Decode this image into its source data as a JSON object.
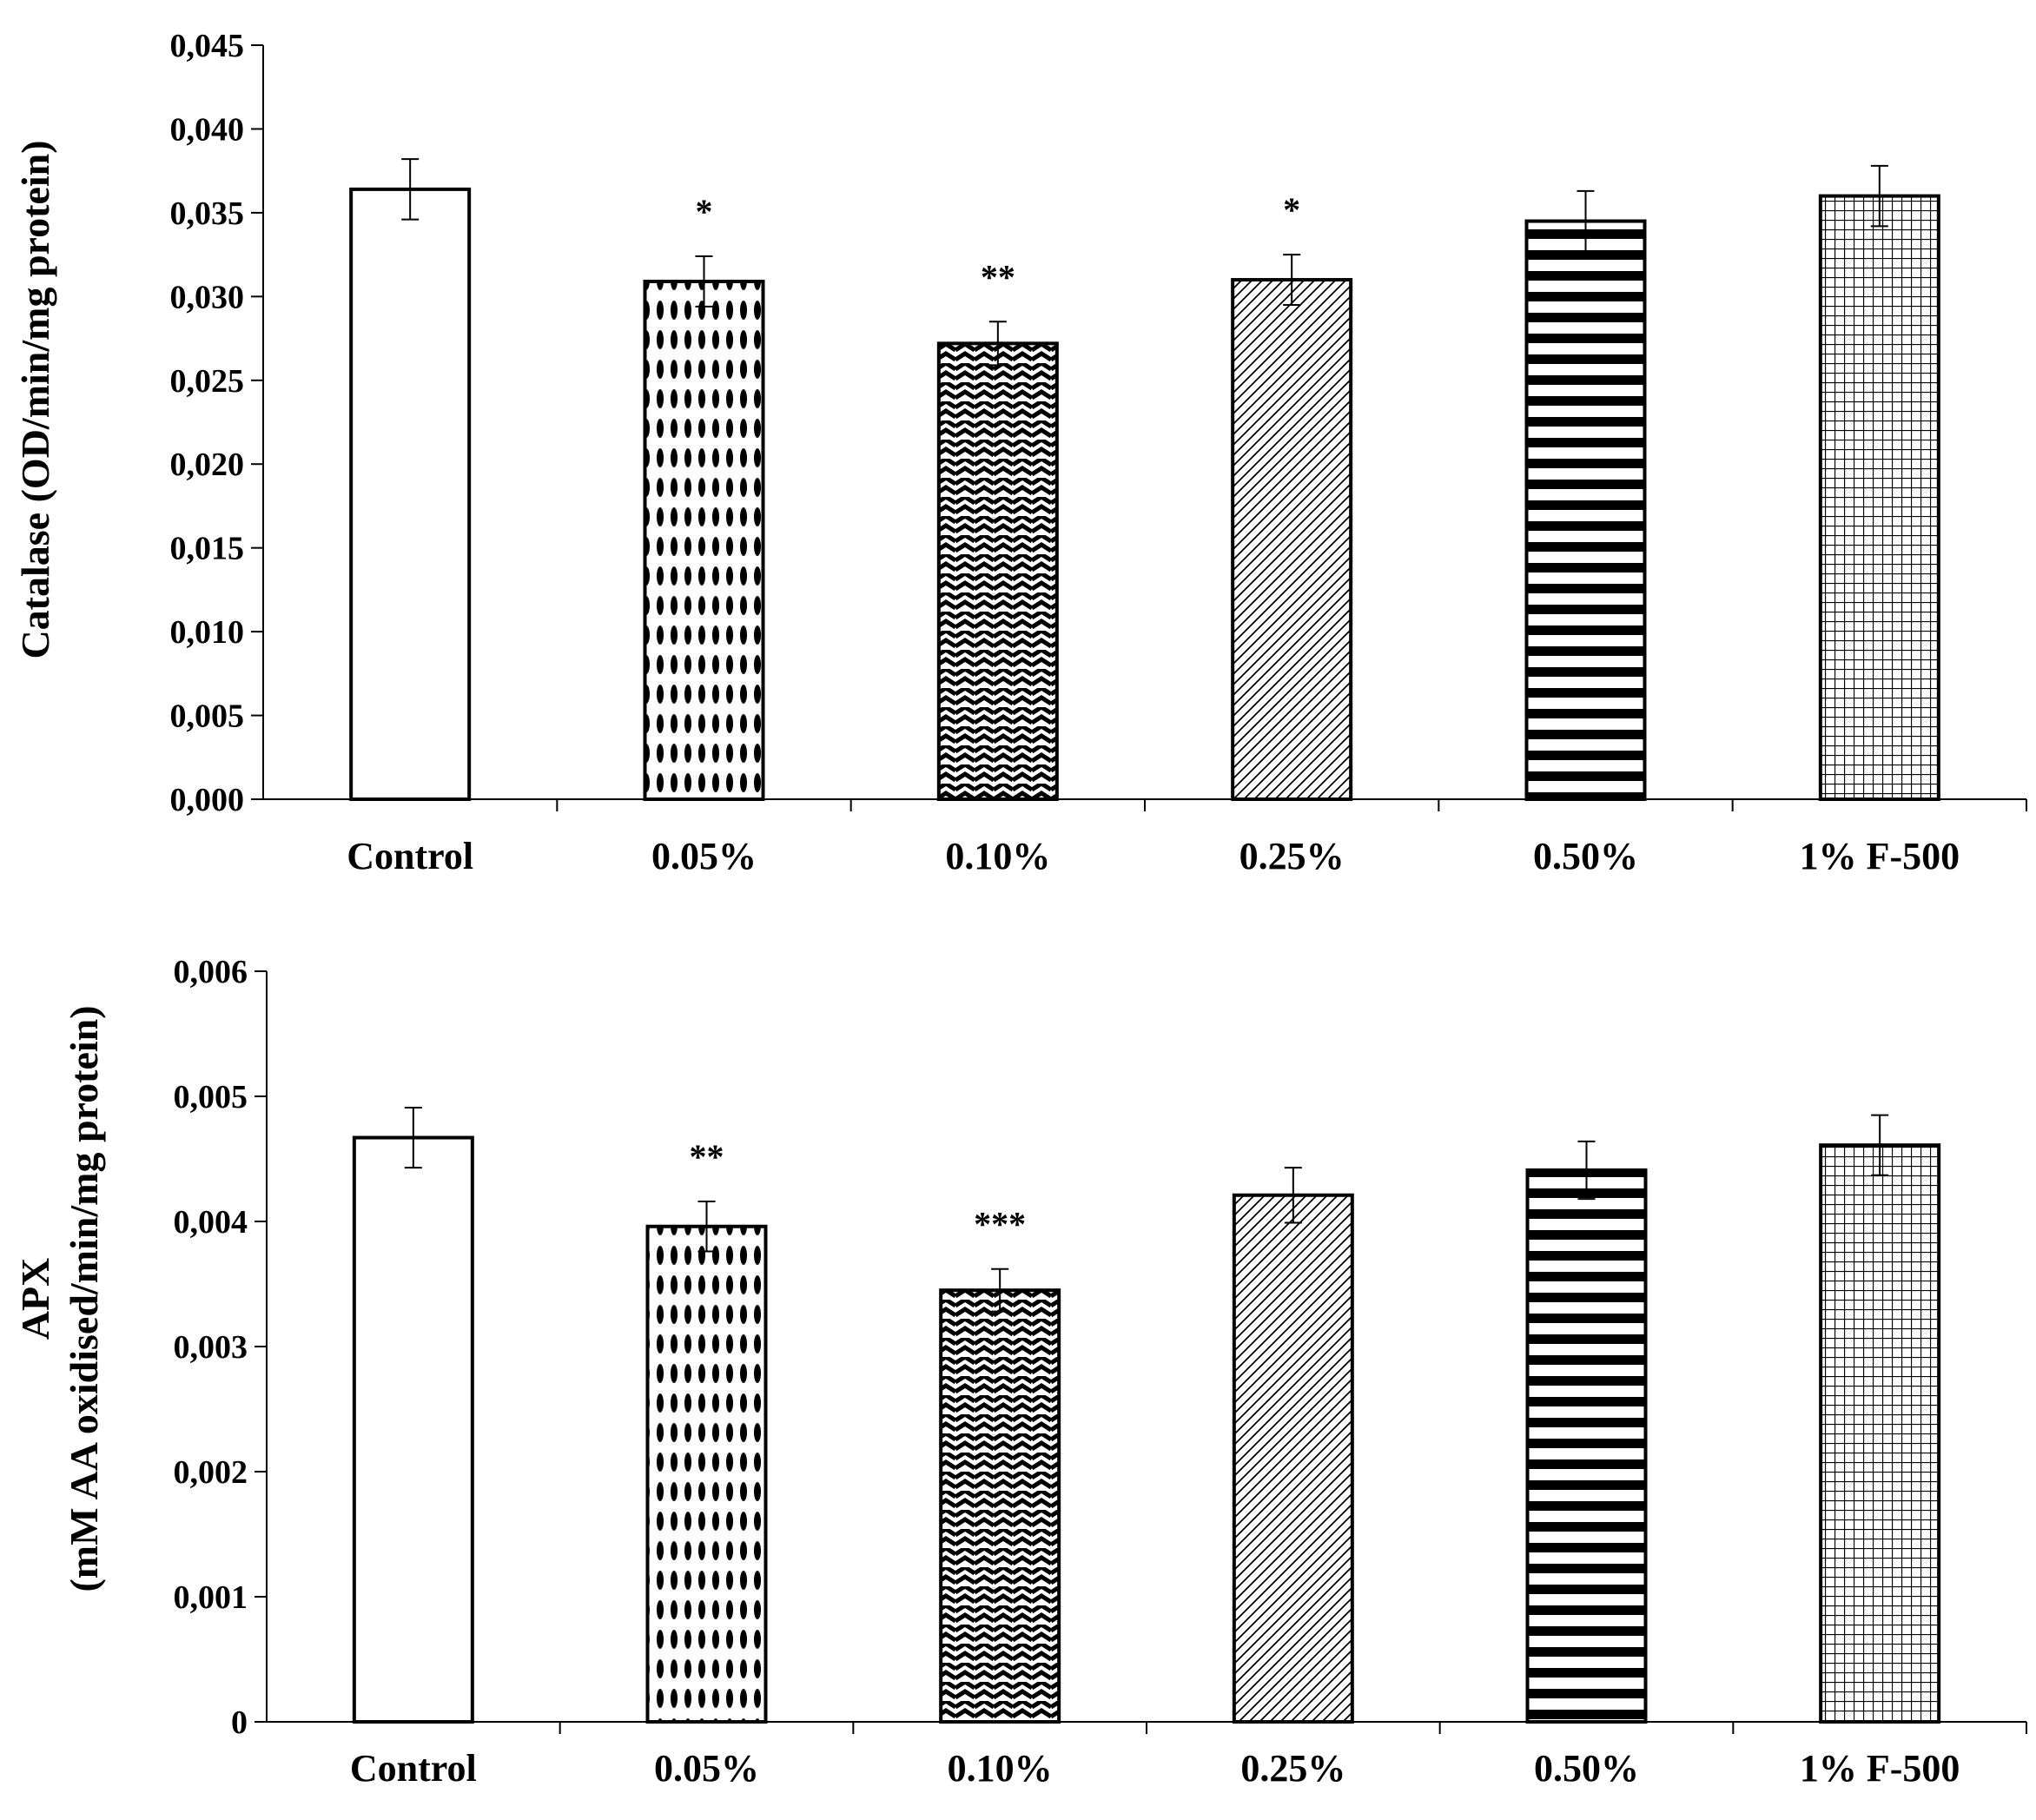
{
  "chart_data": [
    {
      "type": "bar",
      "categories": [
        "Control",
        "0.05%",
        "0.10%",
        "0.25%",
        "0.50%",
        "1% F-500"
      ],
      "values": [
        0.0364,
        0.0309,
        0.0272,
        0.031,
        0.0345,
        0.036
      ],
      "errors": [
        0.0018,
        0.0015,
        0.0013,
        0.0015,
        0.0018,
        0.0018
      ],
      "significance": [
        "",
        "*",
        "**",
        "*",
        "",
        ""
      ],
      "ylabel": "Catalase (OD/min/mg protein)",
      "ylim": [
        0,
        0.045
      ],
      "yticks": [
        "0,000",
        "0,005",
        "0,010",
        "0,015",
        "0,020",
        "0,025",
        "0,030",
        "0,035",
        "0,040",
        "0,045"
      ],
      "grid": false,
      "fill_patterns": [
        "solid-white",
        "ovals",
        "zigzag",
        "diagonal-hatch",
        "horizontal-stripes",
        "grid"
      ]
    },
    {
      "type": "bar",
      "categories": [
        "Control",
        "0.05%",
        "0.10%",
        "0.25%",
        "0.50%",
        "1% F-500"
      ],
      "values": [
        0.00467,
        0.00396,
        0.00345,
        0.00421,
        0.00441,
        0.00461
      ],
      "errors": [
        0.00024,
        0.0002,
        0.00017,
        0.00022,
        0.00023,
        0.00024
      ],
      "significance": [
        "",
        "**",
        "***",
        "",
        "",
        ""
      ],
      "ylabel": "APX",
      "ylabel_line2": "(mM AA oxidised/min/mg protein)",
      "ylim": [
        0,
        0.006
      ],
      "yticks": [
        "0",
        "0,001",
        "0,002",
        "0,003",
        "0,004",
        "0,005",
        "0,006"
      ],
      "grid": false,
      "fill_patterns": [
        "solid-white",
        "ovals",
        "zigzag",
        "diagonal-hatch",
        "horizontal-stripes",
        "grid"
      ]
    }
  ]
}
